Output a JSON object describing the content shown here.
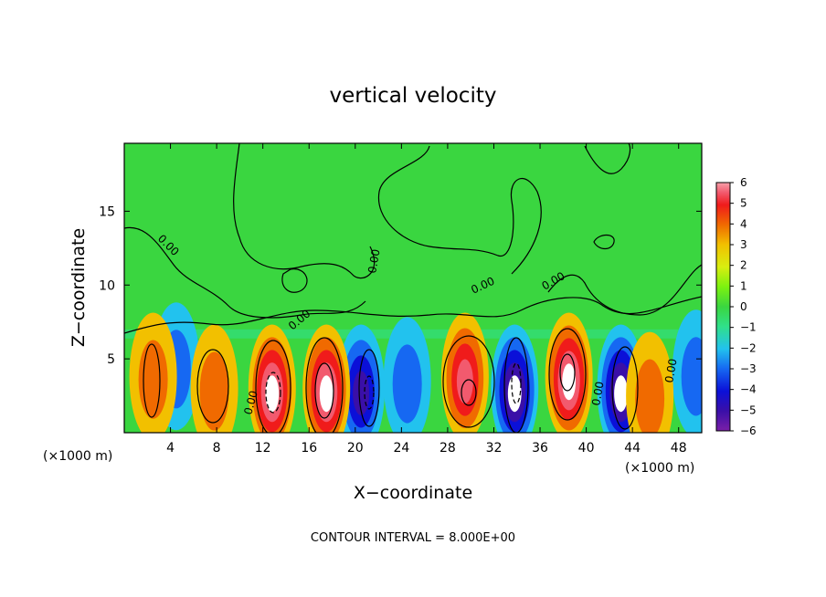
{
  "chart_data": {
    "type": "heatmap",
    "title": "vertical velocity",
    "xlabel": "X−coordinate",
    "ylabel": "Z−coordinate",
    "x_unit_left": "(×1000 m)",
    "x_unit_right": "(×1000 m)",
    "xlim": [
      0,
      50
    ],
    "ylim": [
      0,
      19.6
    ],
    "xticks": [
      4,
      8,
      12,
      16,
      20,
      24,
      28,
      32,
      36,
      40,
      44,
      48
    ],
    "yticks": [
      5,
      10,
      15
    ],
    "colorbar": {
      "min": -6,
      "max": 6,
      "ticks": [
        "6",
        "5",
        "4",
        "3",
        "2",
        "1",
        "0",
        "−1",
        "−2",
        "−3",
        "−4",
        "−5",
        "−6"
      ],
      "colors": [
        "#7a1fa8",
        "#3a0fa8",
        "#0b10d8",
        "#1668f2",
        "#22c2ee",
        "#30e08a",
        "#3ad640",
        "#7cf210",
        "#d8ee10",
        "#f2c000",
        "#f06a00",
        "#f01b1b",
        "#f25a6e",
        "#f6a0aa"
      ]
    },
    "contour_interval_label": "CONTOUR INTERVAL = 8.000E+00",
    "contour_labels": [
      "0.00",
      "0.00",
      "0.00",
      "0.00",
      "0.00",
      "0.00",
      "0.00",
      "0.00"
    ],
    "updrafts": [
      {
        "x": 2.5,
        "z": 3.8,
        "peak": 4.5
      },
      {
        "x": 7.8,
        "z": 3.0,
        "peak": 5.0
      },
      {
        "x": 12.8,
        "z": 3.0,
        "peak": 10
      },
      {
        "x": 17.5,
        "z": 3.0,
        "peak": 12
      },
      {
        "x": 29.5,
        "z": 3.8,
        "peak": 9
      },
      {
        "x": 38.5,
        "z": 3.8,
        "peak": 10
      },
      {
        "x": 45.5,
        "z": 2.5,
        "peak": 3.5
      }
    ],
    "downdrafts": [
      {
        "x": 4.5,
        "z": 4.5,
        "peak": -3.5
      },
      {
        "x": 20.5,
        "z": 3.0,
        "peak": -9
      },
      {
        "x": 24.5,
        "z": 3.5,
        "peak": -4.5
      },
      {
        "x": 33.8,
        "z": 3.0,
        "peak": -10
      },
      {
        "x": 43.0,
        "z": 3.0,
        "peak": -10
      },
      {
        "x": 49.5,
        "z": 4.0,
        "peak": -3.5
      }
    ]
  }
}
